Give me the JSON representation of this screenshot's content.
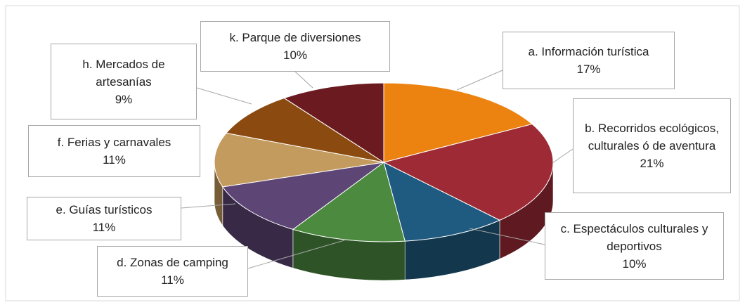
{
  "chart_data": {
    "type": "pie",
    "categories": [
      "a. Información turística",
      "b.  Recorridos ecológicos, culturales ó de aventura",
      "c. Espectáculos culturales y deportivos",
      "d. Zonas de camping",
      "e. Guías turísticos",
      "f. Ferias y carnavales",
      "h. Mercados de artesanías",
      "k. Parque de diversiones"
    ],
    "values": [
      17,
      21,
      10,
      11,
      11,
      11,
      9,
      10
    ],
    "value_labels": [
      "17%",
      "21%",
      "10%",
      "11%",
      "11%",
      "11%",
      "9%",
      "10%"
    ],
    "colors": [
      "#ec820f",
      "#9e2a36",
      "#1f5b80",
      "#4b8a3f",
      "#5d4676",
      "#c49b5e",
      "#8b4b10",
      "#6b1b20"
    ]
  }
}
